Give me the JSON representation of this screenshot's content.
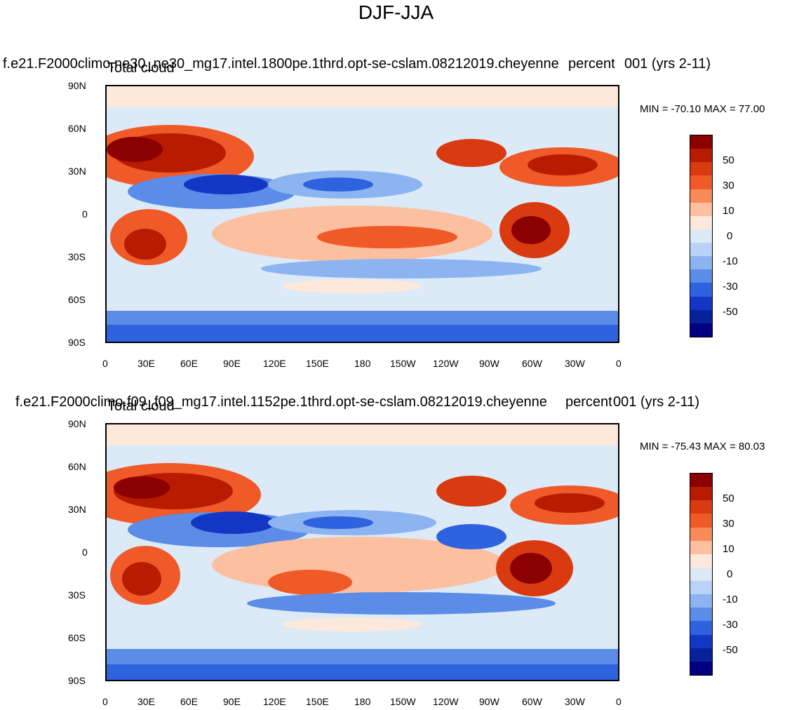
{
  "title": "DJF-JJA",
  "panels": [
    {
      "case_label": "f.e21.F2000climo.ne30_ne30_mg17.intel.1800pe.1thrd.opt-se-cslam.08212019.cheyenne",
      "units_label": "percent",
      "years_label": "001 (yrs 2-11)",
      "var_label": "Total cloud",
      "minmax": "MIN = -70.10 MAX =  77.00"
    },
    {
      "case_label": "f.e21.F2000climo.f09_f09_mg17.intel.1152pe.1thrd.opt-se-cslam.08212019.cheyenne",
      "units_label": "percent",
      "years_label": "001 (yrs 2-11)",
      "var_label": "Total cloud",
      "minmax": "MIN = -75.43 MAX =  80.03"
    }
  ],
  "axes": {
    "lat_ticks": [
      "90N",
      "60N",
      "30N",
      "0",
      "30S",
      "60S",
      "90S"
    ],
    "lon_ticks": [
      "0",
      "30E",
      "60E",
      "90E",
      "120E",
      "150E",
      "180",
      "150W",
      "120W",
      "90W",
      "60W",
      "30W",
      "0"
    ]
  },
  "colorbar": {
    "labels": [
      "50",
      "30",
      "10",
      "0",
      "-10",
      "-30",
      "-50"
    ],
    "colors": [
      "#8b0000",
      "#b71c00",
      "#d93a10",
      "#f05a28",
      "#f98a5a",
      "#fcbfa0",
      "#fde8dc",
      "#dceaf8",
      "#b8d3f5",
      "#8cb4f0",
      "#5a8ce8",
      "#2f62de",
      "#1436c4",
      "#08209a",
      "#000080"
    ]
  }
}
